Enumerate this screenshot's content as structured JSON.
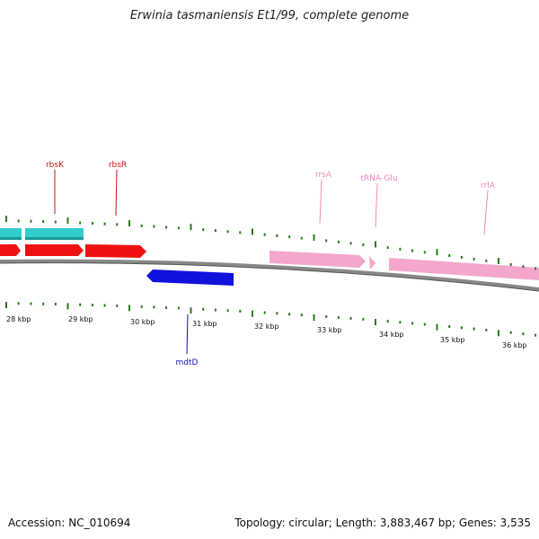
{
  "title": "Erwinia tasmaniensis Et1/99, complete genome",
  "footer": {
    "accession": "Accession: NC_010694",
    "summary": "Topology: circular; Length: 3,883,467 bp; Genes: 3,535"
  },
  "colors": {
    "backbone": "#888888",
    "ticks": "#2a7a1a",
    "cyan_gene": "#33cccc",
    "red_gene": "#ee1111",
    "blue_gene": "#1111dd",
    "pink_gene": "#f4a6cc",
    "red_label": "#cc1111",
    "blue_label": "#1111aa",
    "pink_label": "#ee88bb"
  },
  "scale_labels": [
    {
      "kbp": 28,
      "text": "28 kbp"
    },
    {
      "kbp": 29,
      "text": "29 kbp"
    },
    {
      "kbp": 30,
      "text": "30 kbp"
    },
    {
      "kbp": 31,
      "text": "31 kbp"
    },
    {
      "kbp": 32,
      "text": "32 kbp"
    },
    {
      "kbp": 33,
      "text": "33 kbp"
    },
    {
      "kbp": 34,
      "text": "34 kbp"
    },
    {
      "kbp": 35,
      "text": "35 kbp"
    },
    {
      "kbp": 36,
      "text": "36 kbp"
    }
  ],
  "gene_labels": [
    {
      "name": "rbsK",
      "color_key": "red_label"
    },
    {
      "name": "rbsR",
      "color_key": "red_label"
    },
    {
      "name": "mdtD",
      "color_key": "blue_label"
    },
    {
      "name": "rrsA",
      "color_key": "pink_label"
    },
    {
      "name": "tRNA-Glu",
      "color_key": "pink_label"
    },
    {
      "name": "rrlA",
      "color_key": "pink_label"
    }
  ]
}
